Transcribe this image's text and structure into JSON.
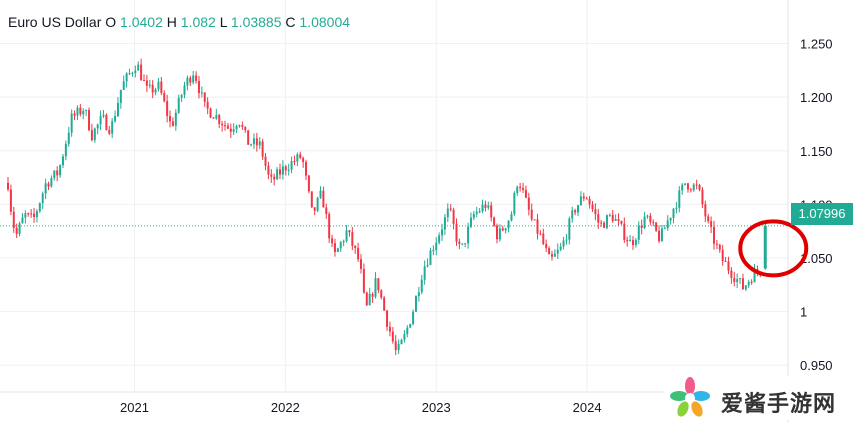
{
  "ohlc": {
    "name": "Euro US Dollar",
    "o_label": "O",
    "o": "1.0402",
    "h_label": "H",
    "h": "1.082",
    "l_label": "L",
    "l": "1.03885",
    "c_label": "C",
    "c": "1.08004"
  },
  "colors": {
    "up": "#22ab94",
    "down": "#f23645",
    "grid": "#eef0f3",
    "annotation": "#e00000"
  },
  "last_price_label": "1.07996",
  "watermark": {
    "text": "爱酱手游网"
  },
  "chart_data": {
    "type": "candlestick",
    "title": "",
    "y_ticks": [
      "1.250",
      "1.200",
      "1.150",
      "1.100",
      "1.050",
      "1",
      "0.950"
    ],
    "y_tick_values": [
      1.25,
      1.2,
      1.15,
      1.1,
      1.05,
      1.0,
      0.95
    ],
    "x_ticks": [
      "2021",
      "2022",
      "2023",
      "2024"
    ],
    "x_tick_dates": [
      "2021-01-01",
      "2022-01-01",
      "2023-01-01",
      "2024-01-01"
    ],
    "x_range": [
      "2020-03-01",
      "2025-05-01"
    ],
    "ylim": [
      0.925,
      1.285
    ],
    "grid": true,
    "last_price": 1.07996,
    "annotation": "red circle around final candle",
    "path": [
      [
        "2020-03-01",
        1.12
      ],
      [
        "2020-03-10",
        1.09
      ],
      [
        "2020-03-20",
        1.07
      ],
      [
        "2020-04-10",
        1.09
      ],
      [
        "2020-05-01",
        1.085
      ],
      [
        "2020-06-01",
        1.12
      ],
      [
        "2020-07-01",
        1.13
      ],
      [
        "2020-07-20",
        1.16
      ],
      [
        "2020-08-01",
        1.18
      ],
      [
        "2020-09-01",
        1.19
      ],
      [
        "2020-09-20",
        1.165
      ],
      [
        "2020-10-15",
        1.18
      ],
      [
        "2020-11-05",
        1.17
      ],
      [
        "2020-12-01",
        1.21
      ],
      [
        "2021-01-06",
        1.232
      ],
      [
        "2021-02-01",
        1.205
      ],
      [
        "2021-03-01",
        1.21
      ],
      [
        "2021-03-31",
        1.172
      ],
      [
        "2021-05-01",
        1.21
      ],
      [
        "2021-05-25",
        1.225
      ],
      [
        "2021-06-20",
        1.19
      ],
      [
        "2021-07-10",
        1.185
      ],
      [
        "2021-08-20",
        1.17
      ],
      [
        "2021-09-10",
        1.18
      ],
      [
        "2021-10-01",
        1.158
      ],
      [
        "2021-11-01",
        1.155
      ],
      [
        "2021-11-25",
        1.12
      ],
      [
        "2022-01-01",
        1.135
      ],
      [
        "2022-02-10",
        1.145
      ],
      [
        "2022-03-07",
        1.09
      ],
      [
        "2022-03-30",
        1.11
      ],
      [
        "2022-04-28",
        1.05
      ],
      [
        "2022-05-30",
        1.075
      ],
      [
        "2022-06-30",
        1.045
      ],
      [
        "2022-07-14",
        1.0
      ],
      [
        "2022-08-10",
        1.03
      ],
      [
        "2022-08-30",
        0.998
      ],
      [
        "2022-09-27",
        0.96
      ],
      [
        "2022-10-15",
        0.975
      ],
      [
        "2022-11-05",
        1.0
      ],
      [
        "2022-11-30",
        1.04
      ],
      [
        "2023-01-10",
        1.075
      ],
      [
        "2023-02-01",
        1.095
      ],
      [
        "2023-03-01",
        1.055
      ],
      [
        "2023-04-01",
        1.09
      ],
      [
        "2023-05-01",
        1.1
      ],
      [
        "2023-05-30",
        1.07
      ],
      [
        "2023-07-01",
        1.09
      ],
      [
        "2023-07-18",
        1.125
      ],
      [
        "2023-08-20",
        1.085
      ],
      [
        "2023-09-10",
        1.07
      ],
      [
        "2023-10-03",
        1.046
      ],
      [
        "2023-11-01",
        1.06
      ],
      [
        "2023-12-01",
        1.095
      ],
      [
        "2023-12-28",
        1.11
      ],
      [
        "2024-02-01",
        1.08
      ],
      [
        "2024-03-01",
        1.09
      ],
      [
        "2024-04-16",
        1.063
      ],
      [
        "2024-05-20",
        1.088
      ],
      [
        "2024-06-26",
        1.068
      ],
      [
        "2024-07-20",
        1.09
      ],
      [
        "2024-08-25",
        1.12
      ],
      [
        "2024-09-25",
        1.115
      ],
      [
        "2024-10-20",
        1.08
      ],
      [
        "2024-11-20",
        1.05
      ],
      [
        "2025-01-13",
        1.022
      ],
      [
        "2025-02-05",
        1.035
      ],
      [
        "2025-02-28",
        1.04
      ]
    ],
    "final_candle": {
      "date": "2025-03-07",
      "open": 1.0402,
      "high": 1.082,
      "low": 1.03885,
      "close": 1.08004
    }
  }
}
